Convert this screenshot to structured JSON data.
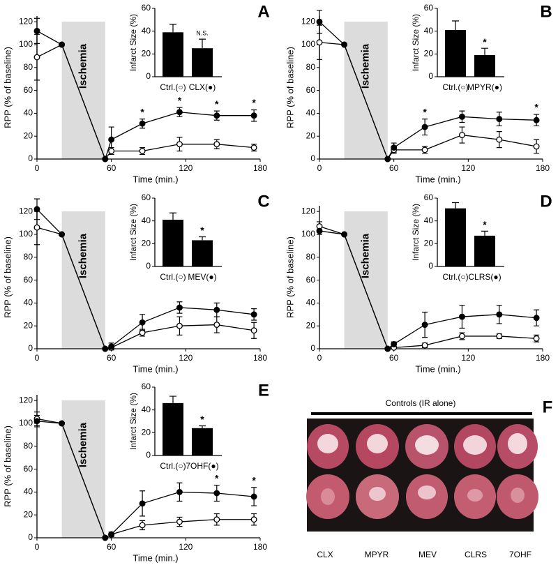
{
  "chart_data": [
    {
      "type": "line",
      "label": "A",
      "xlabel": "Time (min.)",
      "ylabel": "RPP (% of baseline)",
      "xlim": [
        0,
        180
      ],
      "ylim": [
        0,
        125
      ],
      "xticks": [
        0,
        60,
        120,
        180
      ],
      "yticks": [
        0,
        20,
        40,
        60,
        80,
        100,
        120
      ],
      "shaded": {
        "label": "Ischemia",
        "x": [
          20,
          55
        ]
      },
      "x": [
        0,
        20,
        55,
        60,
        85,
        115,
        145,
        175
      ],
      "series": [
        {
          "color": "#ffffff",
          "values": [
            89,
            100,
            0,
            7,
            7,
            13,
            13,
            10
          ],
          "errors": [
            20,
            null,
            null,
            3,
            3,
            6,
            4,
            3
          ]
        },
        {
          "color": "#000000",
          "values": [
            112,
            100,
            0,
            17,
            31,
            41,
            38,
            38
          ],
          "errors": [
            11,
            null,
            null,
            11,
            4,
            4,
            4,
            5
          ],
          "point_labels": [
            null,
            null,
            null,
            null,
            "*",
            "*",
            "*",
            "*"
          ]
        }
      ]
    },
    {
      "type": "bar",
      "ylabel": "Infarct Size (%)",
      "ylim": [
        0,
        60
      ],
      "yticks": [
        0,
        20,
        40,
        60
      ],
      "categories": [
        "Ctrl.(○)",
        "CLX(●)"
      ],
      "values": [
        39,
        25
      ],
      "errors": [
        7,
        8
      ],
      "bar_labels": [
        null,
        "N.S."
      ],
      "color": "#000000"
    },
    {
      "type": "line",
      "label": "B",
      "xlabel": "Time (min.)",
      "ylabel": "RPP (% of baseline)",
      "xlim": [
        0,
        180
      ],
      "ylim": [
        0,
        125
      ],
      "xticks": [
        0,
        60,
        120,
        180
      ],
      "yticks": [
        0,
        20,
        40,
        60,
        80,
        100,
        120
      ],
      "shaded": {
        "label": "Ischemia",
        "x": [
          20,
          55
        ]
      },
      "x": [
        0,
        20,
        55,
        60,
        85,
        115,
        145,
        175
      ],
      "series": [
        {
          "color": "#ffffff",
          "values": [
            102,
            100,
            0,
            8,
            8,
            21,
            17,
            11
          ],
          "errors": [
            15,
            null,
            null,
            3,
            3,
            7,
            7,
            6
          ]
        },
        {
          "color": "#000000",
          "values": [
            120,
            100,
            0,
            10,
            28,
            37,
            35,
            34
          ],
          "errors": [
            10,
            null,
            null,
            4,
            7,
            5,
            6,
            5
          ],
          "point_labels": [
            null,
            null,
            null,
            null,
            "*",
            null,
            null,
            "*"
          ]
        }
      ]
    },
    {
      "type": "bar",
      "ylabel": "Infarct Size (%)",
      "ylim": [
        0,
        60
      ],
      "yticks": [
        0,
        20,
        40,
        60
      ],
      "categories": [
        "Ctrl.(○)",
        "MPYR(●)"
      ],
      "values": [
        41,
        19
      ],
      "errors": [
        8,
        6
      ],
      "bar_labels": [
        null,
        "*"
      ],
      "color": "#000000"
    },
    {
      "type": "line",
      "label": "C",
      "xlabel": "Time (min.)",
      "ylabel": "RPP (% of baseline)",
      "xlim": [
        0,
        180
      ],
      "ylim": [
        0,
        125
      ],
      "xticks": [
        0,
        60,
        120,
        180
      ],
      "yticks": [
        0,
        20,
        40,
        60,
        80,
        100,
        120
      ],
      "shaded": {
        "label": "Ischemia",
        "x": [
          20,
          55
        ]
      },
      "x": [
        0,
        20,
        55,
        60,
        85,
        115,
        145,
        175
      ],
      "series": [
        {
          "color": "#ffffff",
          "values": [
            106,
            100,
            0,
            1,
            14,
            20,
            21,
            16
          ],
          "errors": [
            15,
            null,
            null,
            2,
            3,
            8,
            7,
            7
          ]
        },
        {
          "color": "#000000",
          "values": [
            122,
            100,
            0,
            2,
            23,
            36,
            34,
            30
          ],
          "errors": [
            9,
            null,
            null,
            3,
            7,
            5,
            6,
            5
          ]
        }
      ]
    },
    {
      "type": "bar",
      "ylabel": "Infarct Size (%)",
      "ylim": [
        0,
        60
      ],
      "yticks": [
        0,
        20,
        40,
        60
      ],
      "categories": [
        "Ctrl.(○)",
        "MEV(●)"
      ],
      "values": [
        41,
        23
      ],
      "errors": [
        6,
        3
      ],
      "bar_labels": [
        null,
        "*"
      ],
      "color": "#000000"
    },
    {
      "type": "line",
      "label": "D",
      "xlabel": "Time (min.)",
      "ylabel": "RPP (% of baseline)",
      "xlim": [
        0,
        180
      ],
      "ylim": [
        0,
        125
      ],
      "xticks": [
        0,
        60,
        120,
        180
      ],
      "yticks": [
        0,
        20,
        40,
        60,
        80,
        100,
        120
      ],
      "shaded": {
        "label": "Ischemia",
        "x": [
          20,
          55
        ]
      },
      "x": [
        0,
        20,
        55,
        60,
        85,
        115,
        145,
        175
      ],
      "series": [
        {
          "color": "#ffffff",
          "values": [
            107,
            100,
            0,
            1,
            3,
            11,
            11,
            9
          ],
          "errors": [
            4,
            null,
            null,
            1,
            2,
            3,
            2,
            3
          ]
        },
        {
          "color": "#000000",
          "values": [
            103,
            100,
            0,
            4,
            21,
            28,
            30,
            27
          ],
          "errors": [
            3,
            null,
            null,
            2,
            11,
            10,
            8,
            7
          ]
        }
      ]
    },
    {
      "type": "bar",
      "ylabel": "Infarct Size (%)",
      "ylim": [
        0,
        60
      ],
      "yticks": [
        0,
        20,
        40,
        60
      ],
      "categories": [
        "Ctrl.(○)",
        "CLRS(●)"
      ],
      "values": [
        51,
        27
      ],
      "errors": [
        5,
        4
      ],
      "bar_labels": [
        null,
        "*"
      ],
      "color": "#000000"
    },
    {
      "type": "line",
      "label": "E",
      "xlabel": "Time (min.)",
      "ylabel": "RPP (% of baseline)",
      "xlim": [
        0,
        180
      ],
      "ylim": [
        0,
        125
      ],
      "xticks": [
        0,
        60,
        120,
        180
      ],
      "yticks": [
        0,
        20,
        40,
        60,
        80,
        100,
        120
      ],
      "shaded": {
        "label": "Ischemia",
        "x": [
          20,
          55
        ]
      },
      "x": [
        0,
        20,
        55,
        60,
        85,
        115,
        145,
        175
      ],
      "series": [
        {
          "color": "#ffffff",
          "values": [
            104,
            100,
            0,
            3,
            11,
            14,
            16,
            16
          ],
          "errors": [
            6,
            null,
            null,
            1,
            4,
            4,
            5,
            5
          ]
        },
        {
          "color": "#000000",
          "values": [
            102,
            100,
            0,
            3,
            30,
            40,
            39,
            36
          ],
          "errors": [
            5,
            null,
            null,
            2,
            11,
            8,
            7,
            8
          ],
          "point_labels": [
            null,
            null,
            null,
            null,
            null,
            null,
            "*",
            "*"
          ]
        }
      ]
    },
    {
      "type": "bar",
      "ylabel": "Infarct Size (%)",
      "ylim": [
        0,
        60
      ],
      "yticks": [
        0,
        20,
        40,
        60
      ],
      "categories": [
        "Ctrl.(○)",
        "7OHF(●)"
      ],
      "values": [
        46,
        24
      ],
      "errors": [
        6,
        2
      ],
      "bar_labels": [
        null,
        "*"
      ],
      "color": "#000000"
    }
  ],
  "panel_f": {
    "label": "F",
    "title": "Controls (IR alone)",
    "columns": [
      "CLX",
      "MPYR",
      "MEV",
      "CLRS",
      "7OHF"
    ]
  }
}
